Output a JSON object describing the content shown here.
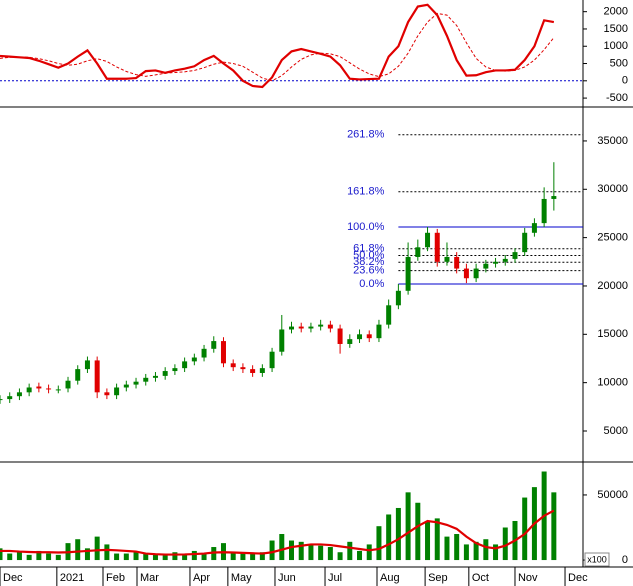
{
  "chart_data": [
    {
      "type": "line",
      "xlim": [
        0,
        120
      ],
      "ylim": [
        -700,
        2280
      ],
      "yticks": [
        2000,
        1500,
        1000,
        500,
        0,
        -500
      ],
      "reference_line": {
        "value": 0,
        "color": "#0000cc"
      },
      "x": [
        0,
        2,
        4,
        6,
        8,
        10,
        12,
        14,
        16,
        18,
        20,
        22,
        24,
        26,
        28,
        30,
        32,
        34,
        36,
        38,
        40,
        42,
        44,
        46,
        48,
        50,
        52,
        54,
        56,
        58,
        60,
        62,
        64,
        66,
        68,
        70,
        72,
        74,
        76,
        78,
        80,
        82,
        84,
        86,
        88,
        90,
        92,
        94,
        96,
        98,
        100,
        102,
        104,
        106,
        108,
        110,
        112,
        114
      ],
      "series": [
        {
          "color": "#e00000",
          "style": "solid",
          "values": [
            720,
            700,
            680,
            660,
            580,
            480,
            380,
            500,
            700,
            880,
            500,
            60,
            60,
            60,
            80,
            280,
            300,
            230,
            300,
            350,
            420,
            600,
            720,
            500,
            300,
            0,
            -150,
            -180,
            100,
            600,
            850,
            920,
            850,
            780,
            700,
            450,
            60,
            40,
            50,
            60,
            700,
            1000,
            1700,
            2150,
            2200,
            1900,
            1300,
            600,
            150,
            160,
            250,
            300,
            300,
            320,
            600,
            1000,
            1750,
            1700
          ]
        },
        {
          "color": "#e00000",
          "style": "dashed",
          "values": [
            650,
            680,
            690,
            680,
            640,
            580,
            500,
            450,
            480,
            580,
            640,
            560,
            400,
            270,
            180,
            130,
            170,
            220,
            240,
            260,
            300,
            380,
            480,
            540,
            500,
            420,
            250,
            80,
            0,
            150,
            400,
            620,
            750,
            800,
            780,
            700,
            520,
            340,
            200,
            120,
            200,
            420,
            800,
            1300,
            1700,
            1950,
            1900,
            1600,
            1100,
            650,
            400,
            300,
            280,
            300,
            400,
            600,
            900,
            1250
          ]
        }
      ]
    },
    {
      "type": "candlestick",
      "xlim": [
        0,
        120
      ],
      "ylim": [
        2000,
        38200
      ],
      "yticks": [
        35000,
        30000,
        25000,
        20000,
        15000,
        10000,
        5000
      ],
      "up_color": "#008000",
      "down_color": "#e00000",
      "x": [
        0,
        2,
        4,
        6,
        8,
        10,
        12,
        14,
        16,
        18,
        20,
        22,
        24,
        26,
        28,
        30,
        32,
        34,
        36,
        38,
        40,
        42,
        44,
        46,
        48,
        50,
        52,
        54,
        56,
        58,
        60,
        62,
        64,
        66,
        68,
        70,
        72,
        74,
        76,
        78,
        80,
        82,
        84,
        86,
        88,
        90,
        92,
        94,
        96,
        98,
        100,
        102,
        104,
        106,
        108,
        110,
        112,
        114
      ],
      "open": [
        8200,
        8300,
        8600,
        9000,
        9600,
        9400,
        9300,
        9400,
        10200,
        11400,
        12300,
        9000,
        8700,
        9500,
        9800,
        10100,
        10500,
        10700,
        11200,
        11500,
        12200,
        12600,
        13500,
        14300,
        12000,
        11600,
        11400,
        11000,
        11500,
        13200,
        15500,
        15800,
        15600,
        15800,
        16000,
        15600,
        14000,
        14500,
        15000,
        14600,
        16000,
        18000,
        19500,
        23000,
        24000,
        25500,
        22500,
        23000,
        21800,
        20800,
        21800,
        22300,
        22500,
        22800,
        23500,
        25500,
        26500,
        29000
      ],
      "high": [
        8700,
        9000,
        9400,
        9900,
        10000,
        9800,
        9700,
        10600,
        11800,
        12700,
        12700,
        9400,
        9900,
        10200,
        10500,
        10900,
        11100,
        11600,
        11900,
        12600,
        13000,
        13900,
        14800,
        14700,
        12400,
        12000,
        11800,
        11900,
        13600,
        17000,
        16300,
        16200,
        16200,
        16500,
        16400,
        16000,
        15000,
        15500,
        15400,
        16500,
        18600,
        20200,
        24500,
        24800,
        26100,
        25900,
        24500,
        23500,
        22300,
        22300,
        22700,
        22900,
        23200,
        23900,
        26000,
        27000,
        30200,
        32800
      ],
      "low": [
        7800,
        7900,
        8200,
        8600,
        9000,
        8900,
        8900,
        9000,
        9800,
        11000,
        8400,
        8300,
        8300,
        9100,
        9400,
        9700,
        10100,
        10300,
        10800,
        11100,
        11800,
        12200,
        13100,
        11600,
        11200,
        11000,
        10600,
        10600,
        11100,
        12800,
        15100,
        15200,
        15200,
        15400,
        15200,
        13000,
        13600,
        14100,
        14200,
        14200,
        15600,
        17600,
        19100,
        22600,
        23600,
        22000,
        22100,
        21300,
        20300,
        20400,
        21400,
        21900,
        22100,
        22400,
        23100,
        25100,
        26100,
        27800
      ],
      "close": [
        8300,
        8600,
        9000,
        9500,
        9400,
        9300,
        9300,
        10200,
        11400,
        12300,
        9000,
        8700,
        9500,
        9800,
        10100,
        10500,
        10700,
        11200,
        11500,
        12200,
        12600,
        13500,
        14300,
        12000,
        11600,
        11400,
        11000,
        11500,
        13200,
        15500,
        15800,
        15600,
        15800,
        16000,
        15600,
        14000,
        14500,
        15000,
        14600,
        16000,
        18000,
        19500,
        23000,
        24000,
        25500,
        22500,
        23000,
        21800,
        20800,
        21800,
        22300,
        22500,
        22800,
        23500,
        25500,
        26500,
        29000,
        29300
      ],
      "fibonacci": {
        "start_x": 82,
        "color": "#0000cc",
        "levels": [
          {
            "label": "261.8%",
            "value": 35646,
            "style": "dashed"
          },
          {
            "label": "161.8%",
            "value": 29746,
            "style": "dashed"
          },
          {
            "label": "100.0%",
            "value": 26100,
            "style": "solid"
          },
          {
            "label": "61.8%",
            "value": 23846,
            "style": "dashed"
          },
          {
            "label": "50.0%",
            "value": 23150,
            "style": "dashed"
          },
          {
            "label": "38.2%",
            "value": 22454,
            "style": "dashed"
          },
          {
            "label": "23.6%",
            "value": 21592,
            "style": "dashed"
          },
          {
            "label": "0.0%",
            "value": 20200,
            "style": "solid"
          }
        ]
      }
    },
    {
      "type": "bar",
      "xlim": [
        0,
        120
      ],
      "ylim": [
        -3800,
        73000
      ],
      "yticks": [
        50000,
        0
      ],
      "color": "#008000",
      "unit_label": "x100",
      "x": [
        0,
        2,
        4,
        6,
        8,
        10,
        12,
        14,
        16,
        18,
        20,
        22,
        24,
        26,
        28,
        30,
        32,
        34,
        36,
        38,
        40,
        42,
        44,
        46,
        48,
        50,
        52,
        54,
        56,
        58,
        60,
        62,
        64,
        66,
        68,
        70,
        72,
        74,
        76,
        78,
        80,
        82,
        84,
        86,
        88,
        90,
        92,
        94,
        96,
        98,
        100,
        102,
        104,
        106,
        108,
        110,
        112,
        114
      ],
      "values": [
        9000,
        5000,
        6000,
        4000,
        7000,
        5000,
        4000,
        13000,
        16000,
        9000,
        18000,
        12000,
        5000,
        5000,
        6000,
        5000,
        4000,
        5000,
        6000,
        5000,
        7000,
        5000,
        10000,
        13000,
        6000,
        6000,
        5000,
        6000,
        15000,
        20000,
        15000,
        14000,
        12000,
        11000,
        10000,
        6000,
        14000,
        7000,
        12000,
        26000,
        35000,
        40000,
        52000,
        44000,
        30000,
        32000,
        18000,
        20000,
        12000,
        14000,
        16000,
        12000,
        25000,
        30000,
        48000,
        56000,
        68000,
        52000
      ],
      "average": {
        "color": "#e00000",
        "values": [
          7000,
          7000,
          6500,
          6200,
          6000,
          6000,
          5800,
          6000,
          6500,
          7000,
          7500,
          7800,
          7500,
          7000,
          6500,
          5000,
          4500,
          4200,
          4200,
          4300,
          4600,
          5000,
          5800,
          6000,
          5800,
          5500,
          5200,
          5000,
          6000,
          8000,
          10000,
          11000,
          12000,
          12000,
          11500,
          10500,
          9500,
          8500,
          7500,
          8500,
          12000,
          16000,
          21000,
          26000,
          30000,
          29000,
          27000,
          24000,
          18000,
          13000,
          10000,
          9000,
          11000,
          15000,
          20000,
          28000,
          34000,
          38000
        ]
      },
      "xticks": [
        {
          "value": 0,
          "label": "Dec"
        },
        {
          "value": 11.7,
          "label": "2021"
        },
        {
          "value": 21.2,
          "label": "Feb"
        },
        {
          "value": 28.2,
          "label": "Mar"
        },
        {
          "value": 39.1,
          "label": "Apr"
        },
        {
          "value": 46.9,
          "label": "May"
        },
        {
          "value": 56.6,
          "label": "Jun"
        },
        {
          "value": 66.9,
          "label": "Jul"
        },
        {
          "value": 77.6,
          "label": "Aug"
        },
        {
          "value": 87.5,
          "label": "Sep"
        },
        {
          "value": 96.5,
          "label": "Oct"
        },
        {
          "value": 106,
          "label": "Nov"
        },
        {
          "value": 116.3,
          "label": "Dec"
        }
      ]
    }
  ]
}
